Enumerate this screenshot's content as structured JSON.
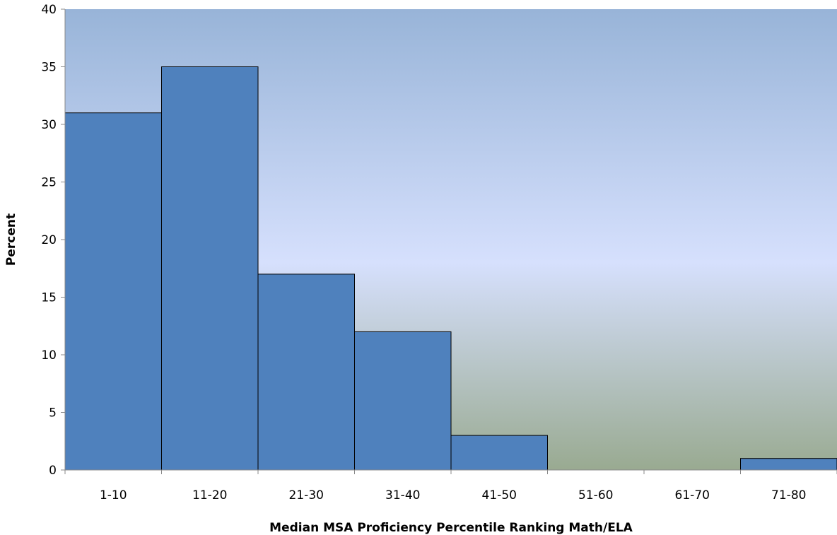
{
  "chart_data": {
    "type": "bar",
    "categories": [
      "1-10",
      "11-20",
      "21-30",
      "31-40",
      "41-50",
      "51-60",
      "61-70",
      "71-80"
    ],
    "values": [
      31,
      35,
      17,
      12,
      3,
      0,
      0,
      1
    ],
    "title": "",
    "xlabel": "Median MSA Proficiency Percentile Ranking Math/ELA",
    "ylabel": "Percent",
    "ylim": [
      0,
      40
    ],
    "yticks": [
      0,
      5,
      10,
      15,
      20,
      25,
      30,
      35,
      40
    ],
    "grid": false,
    "legend": "none",
    "bar_color": "#4f81bd",
    "bar_edge_color": "#000000",
    "plot_background_gradient": [
      "#98b4d8",
      "#d6e0fd",
      "#99aa91"
    ]
  }
}
